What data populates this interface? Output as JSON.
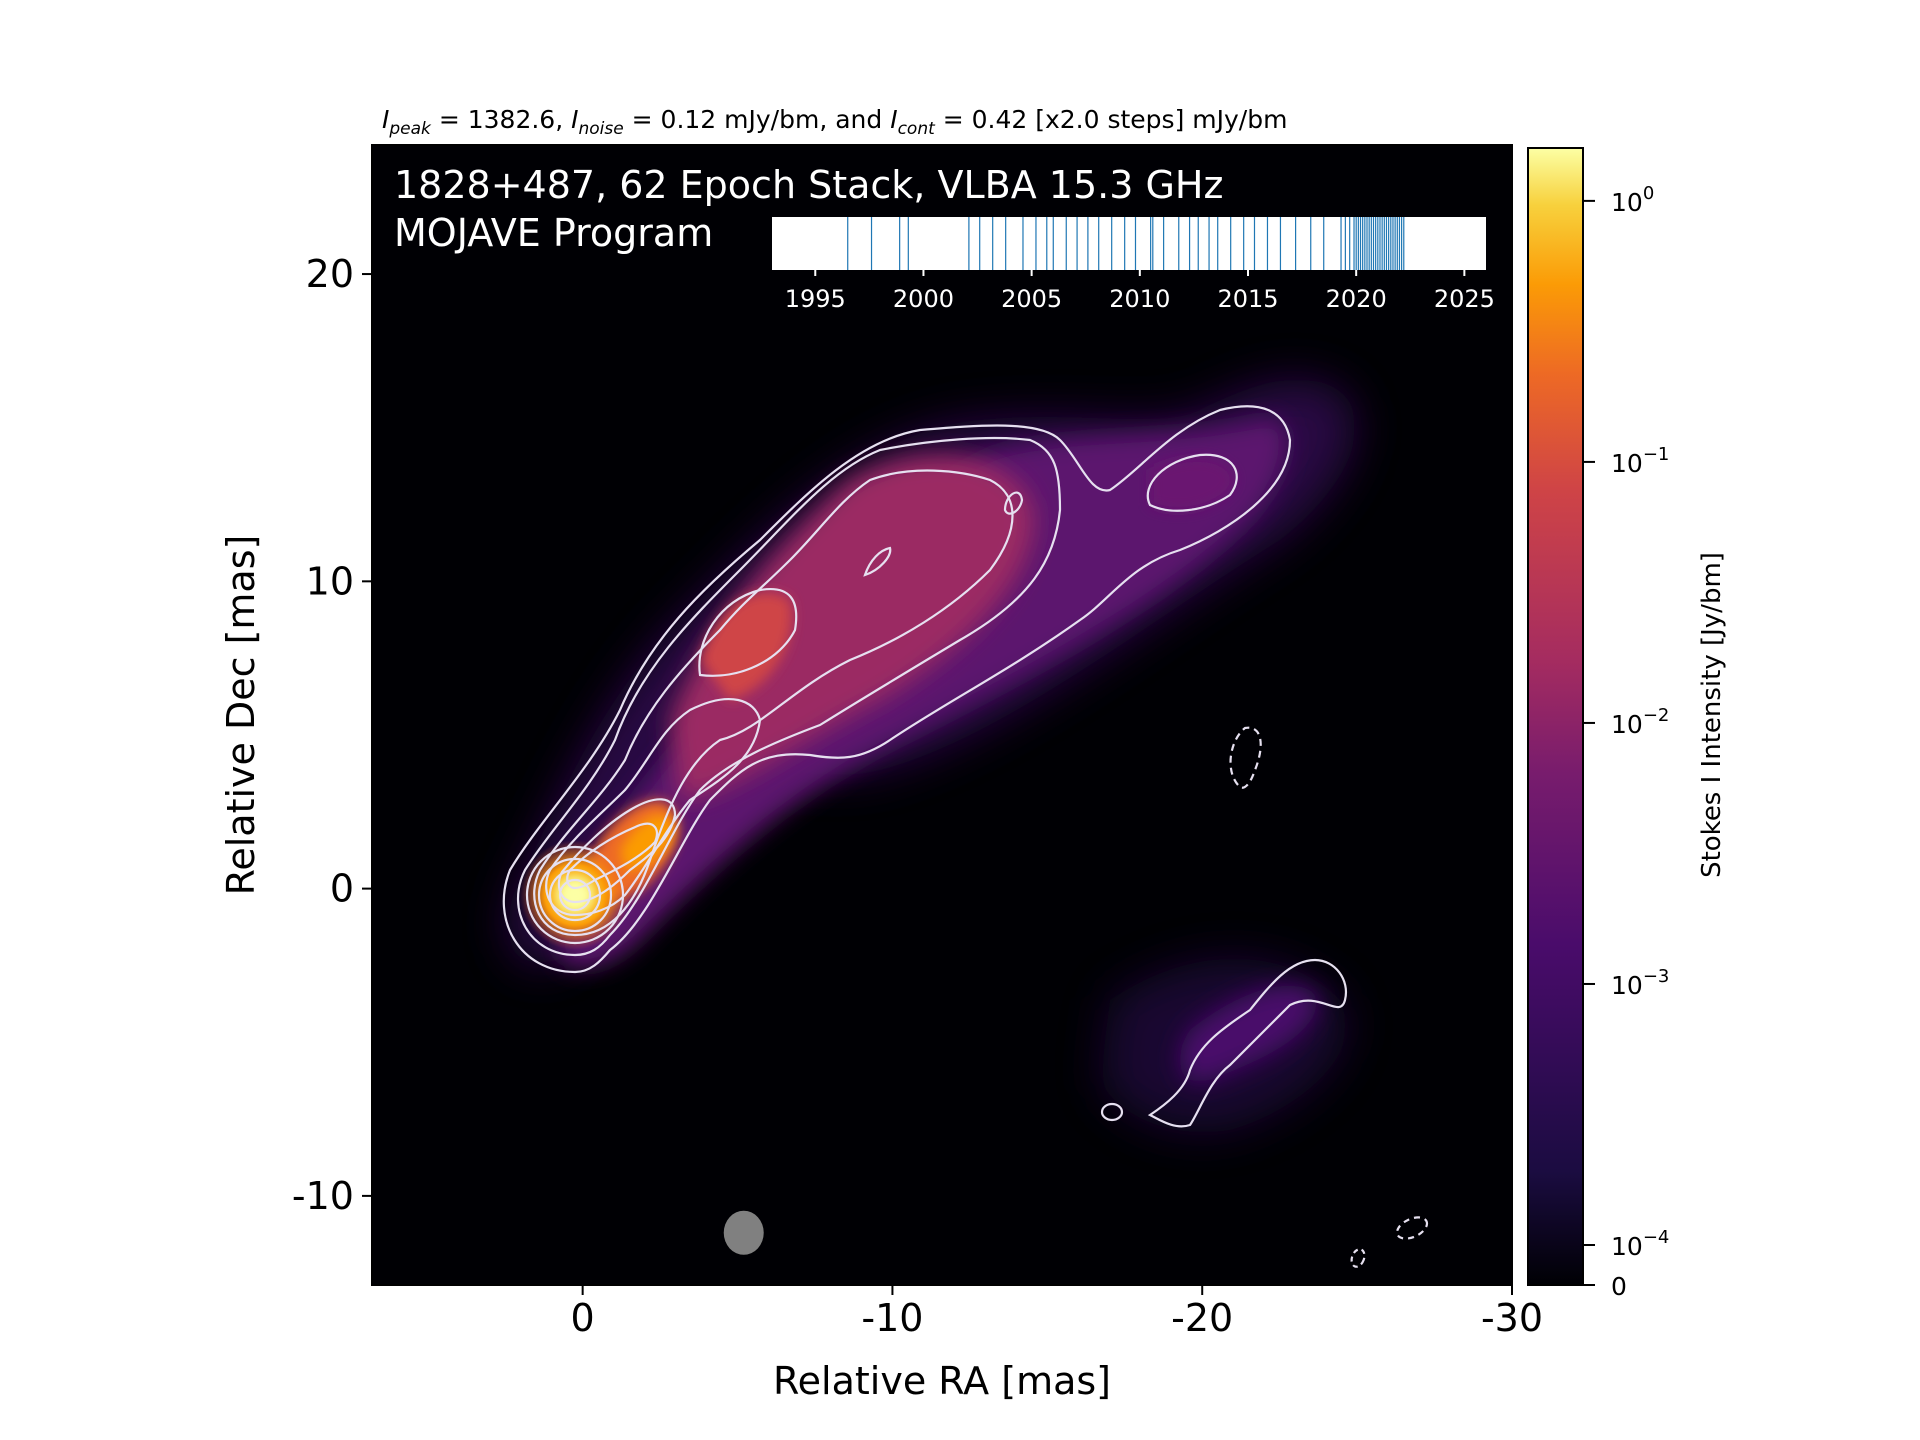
{
  "chart_data": {
    "type": "heatmap",
    "title_parts": {
      "peak_sym": "I",
      "peak_sub": "peak",
      "peak_val": " = 1382.6, ",
      "noise_sym": "I",
      "noise_sub": "noise",
      "noise_val": " = 0.12 mJy/bm, and ",
      "cont_sym": "I",
      "cont_sub": "cont",
      "cont_val": " = 0.42 [x2.0 steps] mJy/bm"
    },
    "annotation_line1": "1828+487, 62 Epoch Stack, VLBA 15.3 GHz",
    "annotation_line2": "MOJAVE Program",
    "xlabel": "Relative RA [mas]",
    "ylabel": "Relative Dec [mas]",
    "xlim": [
      6.8,
      -30
    ],
    "ylim": [
      -12.9,
      24.2
    ],
    "x_ticks": [
      0,
      -10,
      -20,
      -30
    ],
    "x_tick_labels": [
      "0",
      "-10",
      "-20",
      "-30"
    ],
    "y_ticks": [
      -10,
      0,
      10,
      20
    ],
    "y_tick_labels": [
      "-10",
      "0",
      "10",
      "20"
    ],
    "colorbar": {
      "label": "Stokes I Intensity [Jy/bm]",
      "scale": "log",
      "colormap": "inferno",
      "ticks": [
        {
          "base": "10",
          "exp": "0"
        },
        {
          "base": "10",
          "exp": "−1"
        },
        {
          "base": "10",
          "exp": "−2"
        },
        {
          "base": "10",
          "exp": "−3"
        },
        {
          "base": "10",
          "exp": "−4"
        }
      ],
      "tick_values": [
        1,
        0.1,
        0.01,
        0.001,
        0.0001
      ],
      "zero_label": "0"
    },
    "peak_position": [
      0,
      0
    ],
    "beam_position": [
      -5.2,
      -11.2
    ],
    "jet_components": [
      {
        "x": 0,
        "y": 0,
        "level": "peak"
      },
      {
        "x": -2.5,
        "y": 2.2,
        "level": "bright"
      },
      {
        "x": -5.5,
        "y": 8.5,
        "level": "moderate"
      },
      {
        "x": -10,
        "y": 11,
        "level": "diffuse"
      },
      {
        "x": -20.5,
        "y": 13.5,
        "level": "faint"
      },
      {
        "x": -23,
        "y": -5,
        "level": "faint"
      }
    ],
    "epoch_timeline": {
      "xlim": [
        1993,
        2026
      ],
      "ticks": [
        1995,
        2000,
        2005,
        2010,
        2015,
        2020,
        2025
      ],
      "tick_labels": [
        "1995",
        "2000",
        "2005",
        "2010",
        "2015",
        "2020",
        "2025"
      ],
      "epochs": [
        1996.5,
        1997.6,
        1998.9,
        1999.3,
        2002.1,
        2002.6,
        2003.2,
        2003.8,
        2004.6,
        2005.2,
        2005.7,
        2006.0,
        2006.6,
        2007.1,
        2007.6,
        2008.1,
        2008.7,
        2009.3,
        2009.8,
        2010.5,
        2010.6,
        2011.1,
        2011.8,
        2012.3,
        2012.7,
        2013.2,
        2013.6,
        2014.2,
        2014.8,
        2015.3,
        2015.9,
        2016.5,
        2017.2,
        2017.9,
        2018.5,
        2019.3,
        2019.5,
        2019.7,
        2019.9,
        2020.0,
        2020.1,
        2020.2,
        2020.3,
        2020.4,
        2020.5,
        2020.6,
        2020.7,
        2020.8,
        2020.9,
        2021.0,
        2021.1,
        2021.2,
        2021.3,
        2021.4,
        2021.5,
        2021.6,
        2021.7,
        2021.8,
        2021.9,
        2022.0,
        2022.1,
        2022.2
      ]
    }
  }
}
